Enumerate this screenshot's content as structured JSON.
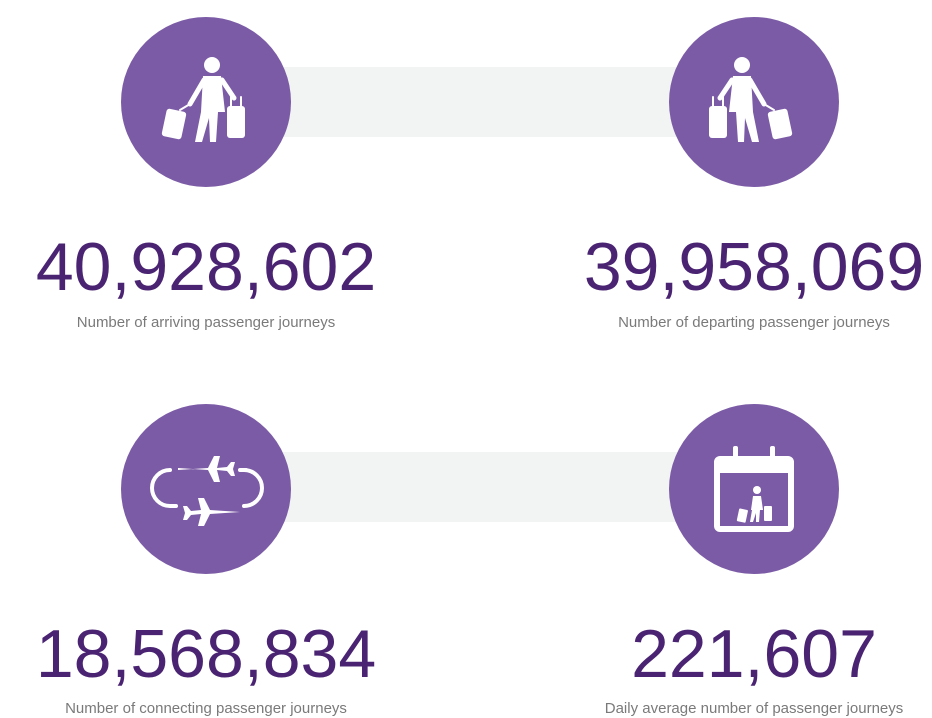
{
  "stats": [
    {
      "value": "40,928,602",
      "label": "Number of arriving passenger journeys"
    },
    {
      "value": "39,958,069",
      "label": "Number of departing passenger journeys"
    },
    {
      "value": "18,568,834",
      "label": "Number of connecting passenger journeys"
    },
    {
      "value": "221,607",
      "label": "Daily average number of passenger journeys"
    }
  ]
}
